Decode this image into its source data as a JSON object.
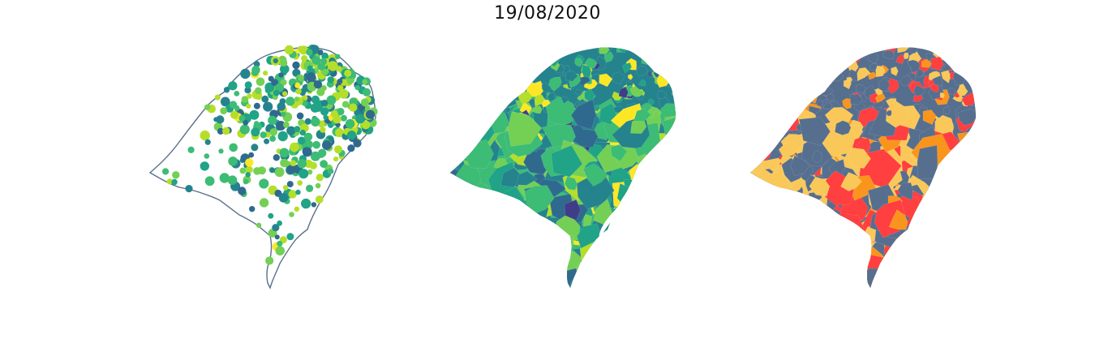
{
  "title": "19/08/2020",
  "maps": [
    {
      "name": "points-map",
      "style": "points"
    },
    {
      "name": "choropleth-viridis-map",
      "style": "choropleth-viridis"
    },
    {
      "name": "choropleth-category-map",
      "style": "choropleth-category"
    }
  ],
  "colors": {
    "outline": "#5a6f8a",
    "viridis": [
      "#3f3d88",
      "#2f6a8e",
      "#25838d",
      "#20a386",
      "#3cbc75",
      "#73d055",
      "#b5de2b",
      "#fde725"
    ],
    "category": [
      "#566f8f",
      "#fac858",
      "#ff3f40",
      "#f9951d"
    ]
  }
}
